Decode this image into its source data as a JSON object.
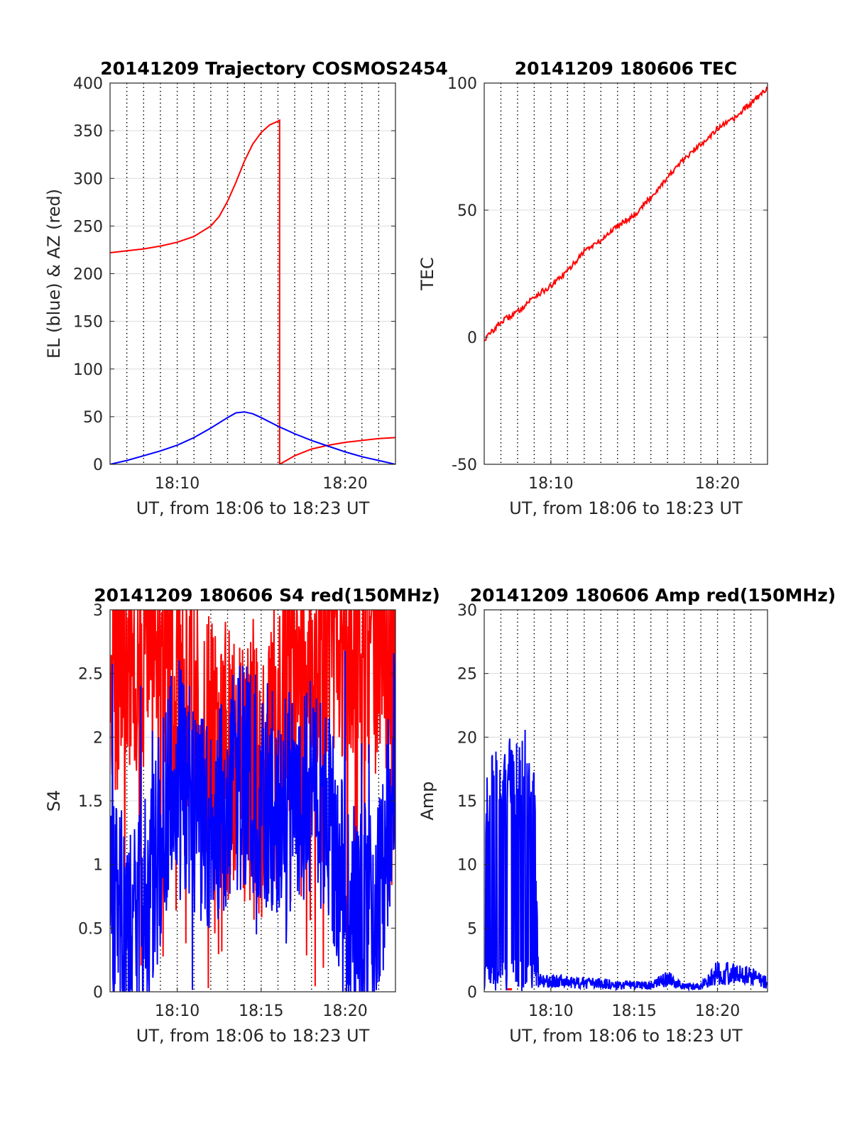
{
  "chart_data": [
    {
      "type": "line",
      "title": "20141209 Trajectory COSMOS2454",
      "xlabel": "UT, from 18:06 to 18:23 UT",
      "ylabel": "EL (blue) & AZ (red)",
      "xlim": [
        "18:06",
        "18:23"
      ],
      "ylim": [
        0,
        400
      ],
      "xticks": [
        "18:10",
        "18:20"
      ],
      "yticks": [
        0,
        50,
        100,
        150,
        200,
        250,
        300,
        350,
        400
      ],
      "grid": true,
      "series": [
        {
          "color": "#ff0000",
          "x": [
            "18:06",
            "18:07",
            "18:08",
            "18:09",
            "18:10",
            "18:11",
            "18:12",
            "18:12:30",
            "18:13",
            "18:13:30",
            "18:14",
            "18:14:30",
            "18:15",
            "18:15:30",
            "18:16",
            "18:16:06",
            "18:16:06",
            "18:17",
            "18:18",
            "18:19",
            "18:20",
            "18:21",
            "18:22",
            "18:23"
          ],
          "y": [
            222,
            224,
            226,
            229,
            233,
            239,
            250,
            260,
            276,
            296,
            318,
            336,
            348,
            356,
            360,
            361,
            0,
            9,
            16,
            20,
            23,
            25,
            27,
            28
          ]
        },
        {
          "color": "#0000ff",
          "x": [
            "18:06",
            "18:07",
            "18:08",
            "18:09",
            "18:10",
            "18:11",
            "18:12",
            "18:13",
            "18:13:30",
            "18:14",
            "18:14:30",
            "18:15",
            "18:16",
            "18:17",
            "18:18",
            "18:19",
            "18:20",
            "18:21",
            "18:22",
            "18:23"
          ],
          "y": [
            0,
            4,
            9,
            14,
            20,
            28,
            38,
            49,
            54,
            55,
            53,
            49,
            40,
            32,
            25,
            19,
            13,
            8,
            4,
            0
          ]
        }
      ]
    },
    {
      "type": "line",
      "title": "20141209 180606 TEC",
      "xlabel": "UT, from 18:06 to 18:23 UT",
      "ylabel": "TEC",
      "xlim": [
        "18:06",
        "18:23"
      ],
      "ylim": [
        -50,
        100
      ],
      "xticks": [
        "18:10",
        "18:20"
      ],
      "yticks": [
        -50,
        0,
        50,
        100
      ],
      "grid": true,
      "series": [
        {
          "color": "#ff0000",
          "x": [
            "18:06",
            "18:07",
            "18:08",
            "18:09",
            "18:10",
            "18:11",
            "18:12",
            "18:13",
            "18:14",
            "18:15",
            "18:16",
            "18:17",
            "18:18",
            "18:19",
            "18:20",
            "18:21",
            "18:22",
            "18:23"
          ],
          "y": [
            -1,
            6,
            10,
            16,
            20,
            26,
            34,
            38,
            44,
            48,
            55,
            63,
            70,
            76,
            82,
            86,
            92,
            98
          ]
        }
      ]
    },
    {
      "type": "line",
      "title": "20141209 180606 S4 red(150MHz)",
      "xlabel": "UT, from 18:06 to 18:23 UT",
      "ylabel": "S4",
      "xlim": [
        "18:06",
        "18:23"
      ],
      "ylim": [
        0,
        3
      ],
      "xticks": [
        "18:10",
        "18:15",
        "18:20"
      ],
      "yticks": [
        0,
        0.5,
        1,
        1.5,
        2,
        2.5,
        3
      ],
      "grid": true,
      "series": [
        {
          "color": "#ff0000",
          "x": [
            "18:06",
            "18:07",
            "18:08",
            "18:09",
            "18:10",
            "18:11",
            "18:12",
            "18:13",
            "18:14",
            "18:15",
            "18:16",
            "18:17",
            "18:18",
            "18:19",
            "18:20",
            "18:21",
            "18:22",
            "18:23"
          ],
          "y": [
            2.6,
            2.7,
            2.8,
            2.7,
            2.4,
            2.3,
            2.0,
            1.8,
            1.7,
            1.6,
            2.2,
            2.5,
            2.6,
            2.8,
            2.9,
            2.9,
            2.8,
            2.7
          ]
        },
        {
          "color": "#0000ff",
          "x": [
            "18:06",
            "18:07",
            "18:08",
            "18:09",
            "18:10",
            "18:11",
            "18:12",
            "18:13",
            "18:14",
            "18:15",
            "18:16",
            "18:17",
            "18:18",
            "18:19",
            "18:20",
            "18:21",
            "18:22",
            "18:23"
          ],
          "y": [
            0.6,
            0.5,
            0.6,
            1.2,
            1.8,
            1.5,
            1.3,
            1.6,
            1.7,
            1.6,
            1.4,
            1.5,
            1.6,
            1.5,
            0.6,
            0.6,
            0.6,
            1.9
          ]
        }
      ]
    },
    {
      "type": "line",
      "title": "20141209 180606 Amp red(150MHz)",
      "xlabel": "UT, from 18:06 to 18:23 UT",
      "ylabel": "Amp",
      "xlim": [
        "18:06",
        "18:23"
      ],
      "ylim": [
        0,
        30
      ],
      "xticks": [
        "18:10",
        "18:15",
        "18:20"
      ],
      "yticks": [
        0,
        5,
        10,
        15,
        20,
        25,
        30
      ],
      "grid": true,
      "series": [
        {
          "color": "#ff0000",
          "x": [
            "18:07:20",
            "18:07:40"
          ],
          "y": [
            0.2,
            0.2
          ]
        },
        {
          "color": "#0000ff",
          "x": [
            "18:06",
            "18:06:30",
            "18:07",
            "18:07:30",
            "18:08",
            "18:08:30",
            "18:09",
            "18:09:15",
            "18:10",
            "18:11",
            "18:12",
            "18:13",
            "18:14",
            "18:15",
            "18:16",
            "18:17",
            "18:18",
            "18:19",
            "18:20",
            "18:21",
            "18:22",
            "18:23"
          ],
          "y": [
            15,
            17,
            16,
            18,
            17,
            18,
            16,
            1,
            1,
            0.9,
            0.8,
            0.8,
            0.6,
            0.6,
            0.6,
            1.2,
            0.5,
            0.5,
            1.8,
            1.6,
            1.5,
            0.8
          ]
        }
      ]
    }
  ]
}
